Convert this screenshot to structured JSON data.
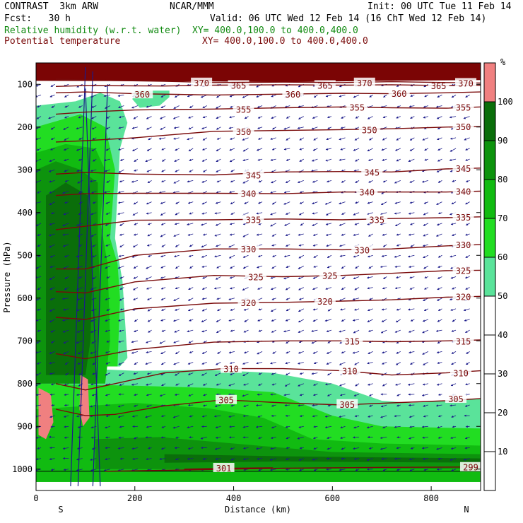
{
  "header": {
    "model": "CONTRAST  3km ARW",
    "center": "NCAR/MMM",
    "init": "Init: 00 UTC Tue 11 Feb 14",
    "fcst": "Fcst:   30 h",
    "valid": "Valid: 06 UTC Wed 12 Feb 14 (16 ChT Wed 12 Feb 14)",
    "field1_name": "Relative humidity (w.r.t. water)",
    "field1_xy": "XY= 400.0,100.0 to 400.0,400.0",
    "field2_name": "Potential temperature",
    "field2_xy": "XY= 400.0,100.0 to 400.0,400.0"
  },
  "colors": {
    "rh_band_40_50": "#ffffff",
    "rh_band_50_60": "#5ae39a",
    "rh_band_60_70": "#22dd22",
    "rh_band_70_80": "#11bb11",
    "rh_band_80_90": "#0d930d",
    "rh_band_90_100": "#0a6e0a",
    "rh_band_100_plus": "#f08080",
    "theta_contour": "#7a0a0a",
    "wind_vectors": "#1b1b8a"
  },
  "chart_data": {
    "type": "cross-section",
    "xlabel": "Distance (km)",
    "ylabel": "Pressure (hPa)",
    "x_ticks": [
      0,
      200,
      400,
      600,
      800
    ],
    "x_range": [
      0,
      900
    ],
    "y_ticks": [
      100,
      200,
      300,
      400,
      500,
      600,
      700,
      800,
      900,
      1000
    ],
    "y_range": [
      1050,
      50
    ],
    "x_end_labels": {
      "left": "S",
      "right": "N"
    },
    "colorbar": {
      "unit": "%",
      "ticks": [
        10,
        20,
        30,
        40,
        50,
        60,
        70,
        80,
        90,
        100
      ],
      "bands": [
        {
          "from": 0,
          "to": 50,
          "color": "#ffffff"
        },
        {
          "from": 50,
          "to": 60,
          "color": "#5ae39a"
        },
        {
          "from": 60,
          "to": 70,
          "color": "#22dd22"
        },
        {
          "from": 70,
          "to": 80,
          "color": "#11bb11"
        },
        {
          "from": 80,
          "to": 90,
          "color": "#0d930d"
        },
        {
          "from": 90,
          "to": 100,
          "color": "#0a6e0a"
        },
        {
          "from": 100,
          "to": 110,
          "color": "#f08080"
        }
      ]
    },
    "theta_contours": [
      {
        "level": 305,
        "points": [
          [
            40,
            860
          ],
          [
            100,
            875
          ],
          [
            160,
            872
          ],
          [
            260,
            852
          ],
          [
            380,
            838
          ],
          [
            500,
            845
          ],
          [
            620,
            850
          ],
          [
            720,
            845
          ],
          [
            830,
            840
          ],
          [
            900,
            835
          ]
        ],
        "labels": [
          [
            385,
            838
          ],
          [
            630,
            848
          ],
          [
            850,
            835
          ]
        ]
      },
      {
        "level": 310,
        "points": [
          [
            40,
            800
          ],
          [
            100,
            815
          ],
          [
            160,
            800
          ],
          [
            260,
            775
          ],
          [
            380,
            765
          ],
          [
            500,
            765
          ],
          [
            620,
            770
          ],
          [
            720,
            780
          ],
          [
            830,
            775
          ],
          [
            900,
            770
          ]
        ],
        "labels": [
          [
            395,
            765
          ],
          [
            635,
            770
          ],
          [
            860,
            775
          ]
        ]
      },
      {
        "level": 315,
        "points": [
          [
            40,
            730
          ],
          [
            100,
            742
          ],
          [
            200,
            720
          ],
          [
            360,
            703
          ],
          [
            500,
            700
          ],
          [
            620,
            700
          ],
          [
            720,
            702
          ],
          [
            830,
            700
          ],
          [
            900,
            698
          ]
        ],
        "labels": [
          [
            640,
            700
          ],
          [
            865,
            700
          ]
        ]
      },
      {
        "level": 320,
        "points": [
          [
            40,
            645
          ],
          [
            100,
            650
          ],
          [
            200,
            625
          ],
          [
            360,
            612
          ],
          [
            500,
            610
          ],
          [
            620,
            607
          ],
          [
            720,
            604
          ],
          [
            830,
            598
          ],
          [
            900,
            596
          ]
        ],
        "labels": [
          [
            430,
            610
          ],
          [
            585,
            607
          ],
          [
            865,
            596
          ]
        ]
      },
      {
        "level": 325,
        "points": [
          [
            40,
            585
          ],
          [
            100,
            588
          ],
          [
            200,
            562
          ],
          [
            360,
            547
          ],
          [
            500,
            550
          ],
          [
            620,
            547
          ],
          [
            720,
            542
          ],
          [
            830,
            536
          ],
          [
            900,
            535
          ]
        ],
        "labels": [
          [
            445,
            550
          ],
          [
            595,
            547
          ],
          [
            865,
            535
          ]
        ]
      },
      {
        "level": 330,
        "points": [
          [
            40,
            532
          ],
          [
            100,
            532
          ],
          [
            200,
            500
          ],
          [
            360,
            485
          ],
          [
            500,
            485
          ],
          [
            620,
            487
          ],
          [
            720,
            485
          ],
          [
            830,
            478
          ],
          [
            900,
            475
          ]
        ],
        "labels": [
          [
            430,
            485
          ],
          [
            660,
            487
          ],
          [
            865,
            475
          ]
        ]
      },
      {
        "level": 335,
        "points": [
          [
            40,
            440
          ],
          [
            100,
            432
          ],
          [
            200,
            418
          ],
          [
            360,
            417
          ],
          [
            500,
            415
          ],
          [
            620,
            417
          ],
          [
            720,
            414
          ],
          [
            830,
            412
          ],
          [
            900,
            410
          ]
        ],
        "labels": [
          [
            440,
            416
          ],
          [
            690,
            416
          ],
          [
            865,
            410
          ]
        ]
      },
      {
        "level": 340,
        "points": [
          [
            40,
            360
          ],
          [
            100,
            356
          ],
          [
            200,
            355
          ],
          [
            360,
            355
          ],
          [
            500,
            356
          ],
          [
            620,
            352
          ],
          [
            720,
            352
          ],
          [
            830,
            352
          ],
          [
            900,
            350
          ]
        ],
        "labels": [
          [
            430,
            355
          ],
          [
            670,
            352
          ],
          [
            865,
            350
          ]
        ]
      },
      {
        "level": 345,
        "points": [
          [
            40,
            310
          ],
          [
            100,
            306
          ],
          [
            200,
            310
          ],
          [
            360,
            312
          ],
          [
            500,
            305
          ],
          [
            620,
            304
          ],
          [
            720,
            305
          ],
          [
            830,
            298
          ],
          [
            900,
            296
          ]
        ],
        "labels": [
          [
            440,
            312
          ],
          [
            680,
            305
          ],
          [
            865,
            296
          ]
        ]
      },
      {
        "level": 350,
        "points": [
          [
            40,
            235
          ],
          [
            100,
            232
          ],
          [
            200,
            225
          ],
          [
            360,
            210
          ],
          [
            500,
            208
          ],
          [
            620,
            206
          ],
          [
            720,
            204
          ],
          [
            830,
            200
          ],
          [
            900,
            199
          ]
        ],
        "labels": [
          [
            420,
            210
          ],
          [
            675,
            206
          ],
          [
            865,
            199
          ]
        ]
      },
      {
        "level": 355,
        "points": [
          [
            40,
            170
          ],
          [
            100,
            165
          ],
          [
            200,
            160
          ],
          [
            360,
            158
          ],
          [
            500,
            155
          ],
          [
            620,
            153
          ],
          [
            720,
            155
          ],
          [
            830,
            156
          ],
          [
            900,
            153
          ]
        ],
        "labels": [
          [
            420,
            158
          ],
          [
            650,
            153
          ],
          [
            865,
            153
          ]
        ]
      },
      {
        "level": 360,
        "points": [
          [
            40,
            120
          ],
          [
            100,
            118
          ],
          [
            200,
            122
          ],
          [
            360,
            125
          ],
          [
            500,
            123
          ],
          [
            620,
            121
          ],
          [
            720,
            122
          ],
          [
            830,
            120
          ],
          [
            900,
            118
          ]
        ],
        "labels": [
          [
            215,
            123
          ],
          [
            520,
            123
          ],
          [
            735,
            121
          ]
        ]
      },
      {
        "level": 365,
        "points": [
          [
            40,
            105
          ],
          [
            100,
            103
          ],
          [
            260,
            104
          ],
          [
            360,
            102
          ],
          [
            500,
            101
          ],
          [
            620,
            102
          ],
          [
            720,
            101
          ],
          [
            830,
            103
          ],
          [
            900,
            102
          ]
        ],
        "labels": [
          [
            410,
            102
          ],
          [
            585,
            102
          ],
          [
            815,
            103
          ]
        ]
      },
      {
        "level": 370,
        "points": [
          [
            40,
            88
          ],
          [
            100,
            90
          ],
          [
            260,
            93
          ],
          [
            360,
            96
          ],
          [
            500,
            95
          ],
          [
            620,
            96
          ],
          [
            720,
            94
          ],
          [
            830,
            96
          ],
          [
            900,
            97
          ]
        ],
        "labels": [
          [
            335,
            96
          ],
          [
            665,
            96
          ],
          [
            870,
            97
          ]
        ]
      },
      {
        "level": 299,
        "points": [
          [
            140,
            1005
          ],
          [
            300,
            1002
          ],
          [
            500,
            998
          ],
          [
            700,
            996
          ],
          [
            900,
            995
          ]
        ],
        "labels": [
          [
            880,
            995
          ]
        ]
      },
      {
        "level": 301,
        "points": [
          [
            300,
            1000
          ],
          [
            400,
            998
          ],
          [
            480,
            997
          ]
        ],
        "labels": [
          [
            380,
            997
          ]
        ]
      }
    ]
  }
}
